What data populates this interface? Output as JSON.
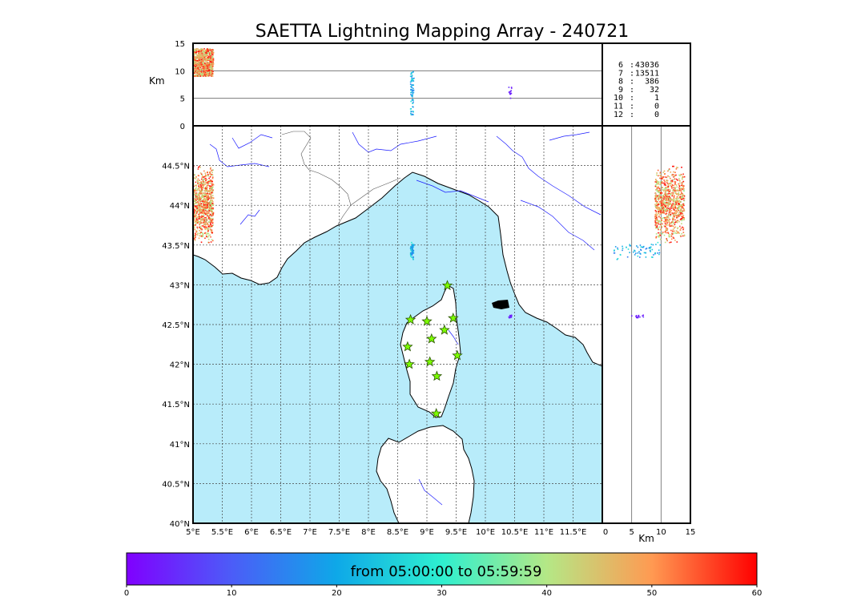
{
  "chart_data": {
    "type": "scatter",
    "title": "SAETTA Lightning Mapping Array - 240721",
    "map": {
      "xlim": [
        5,
        12
      ],
      "ylim": [
        40,
        45
      ],
      "x_ticks": [
        5,
        5.5,
        6,
        6.5,
        7,
        7.5,
        8,
        8.5,
        9,
        9.5,
        10,
        10.5,
        11,
        11.5
      ],
      "x_tick_labels": [
        "5°E",
        "5.5°E",
        "6°E",
        "6.5°E",
        "7°E",
        "7.5°E",
        "8°E",
        "8.5°E",
        "9°E",
        "9.5°E",
        "10°E",
        "10.5°E",
        "11°E",
        "11.5°E"
      ],
      "y_ticks": [
        40,
        40.5,
        41,
        41.5,
        42,
        42.5,
        43,
        43.5,
        44,
        44.5
      ],
      "y_tick_labels": [
        "40°N",
        "40.5°N",
        "41°N",
        "41.5°N",
        "42°N",
        "42.5°N",
        "43°N",
        "43.5°N",
        "44°N",
        "44.5°N"
      ],
      "grid": true,
      "sea_color": "#b8ecfa",
      "land_color": "#ffffff"
    },
    "top_panel": {
      "ylabel": "Km",
      "ylim": [
        0,
        15
      ],
      "y_ticks": [
        0,
        5,
        10,
        15
      ]
    },
    "right_panel": {
      "xlabel": "Km",
      "xlim": [
        0,
        15
      ],
      "x_ticks": [
        0,
        5,
        10,
        15
      ]
    },
    "station_counts": [
      {
        "label": "6",
        "count": "43036",
        "color": "#000000"
      },
      {
        "label": "7",
        "count": "13511",
        "color": "#ff0000"
      },
      {
        "label": "8",
        "count": "386",
        "color": "#000000"
      },
      {
        "label": "9",
        "count": "32",
        "color": "#000000"
      },
      {
        "label": "10",
        "count": "1",
        "color": "#000000"
      },
      {
        "label": "11",
        "count": "0",
        "color": "#000000"
      },
      {
        "label": "12",
        "count": "0",
        "color": "#000000"
      }
    ],
    "stations": [
      {
        "lon": 9.35,
        "lat": 42.99
      },
      {
        "lon": 8.72,
        "lat": 42.56
      },
      {
        "lon": 9.0,
        "lat": 42.54
      },
      {
        "lon": 9.45,
        "lat": 42.58
      },
      {
        "lon": 9.3,
        "lat": 42.43
      },
      {
        "lon": 9.08,
        "lat": 42.32
      },
      {
        "lon": 8.67,
        "lat": 42.22
      },
      {
        "lon": 9.52,
        "lat": 42.11
      },
      {
        "lon": 9.05,
        "lat": 42.03
      },
      {
        "lon": 8.7,
        "lat": 42.0
      },
      {
        "lon": 9.17,
        "lat": 41.85
      },
      {
        "lon": 9.16,
        "lat": 41.38
      }
    ],
    "source_clusters": [
      {
        "lon": [
          5.0,
          5.35
        ],
        "lat": [
          43.5,
          44.5
        ],
        "alt": [
          9,
          14
        ],
        "time_min": [
          38,
          60
        ],
        "n": 900
      },
      {
        "lon": [
          8.72,
          8.78
        ],
        "lat": [
          43.3,
          43.55
        ],
        "alt": [
          2,
          10
        ],
        "time_min": [
          14,
          30
        ],
        "n": 70
      },
      {
        "lon": [
          10.4,
          10.45
        ],
        "lat": [
          42.57,
          42.63
        ],
        "alt": [
          5,
          7
        ],
        "time_min": [
          2,
          6
        ],
        "n": 15
      }
    ],
    "colorbar": {
      "label": "from 05:00:00 to 05:59:59",
      "min": 0,
      "max": 60,
      "ticks": [
        0,
        10,
        20,
        30,
        40,
        50,
        60
      ],
      "colormap": "rainbow"
    }
  }
}
